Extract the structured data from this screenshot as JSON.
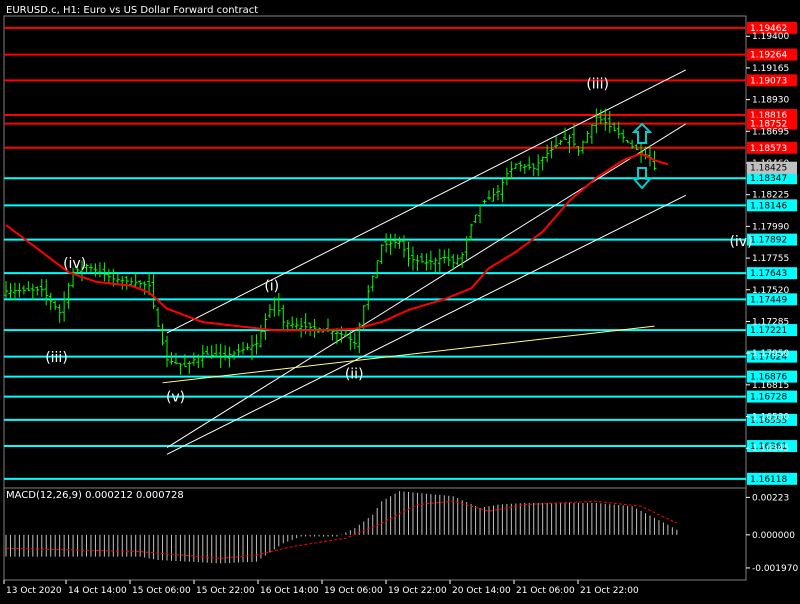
{
  "header": {
    "title": "EURUSD.c, H1:  Euro vs US Dollar Forward contract",
    "macd_label": "MACD(12,26,9) 0.000212 0.000728"
  },
  "colors": {
    "background": "#000000",
    "candle": "#00ff00",
    "ma": "#ff0000",
    "resistance": "#ff0000",
    "support": "#00ffff",
    "channel": "#ffffff",
    "trendline": "#ffff88",
    "macd_hist": "#c0c0c0",
    "macd_signal": "#ff0000",
    "arrow": "#00ced1"
  },
  "icons": {
    "up_arrow": "up-arrow-icon",
    "down_arrow": "down-arrow-icon"
  },
  "chart_data": {
    "type": "candlestick",
    "symbol": "EURUSD.c",
    "timeframe": "H1",
    "ylim": [
      1.1605,
      1.1955
    ],
    "price_ticks": [
      "1.19400",
      "1.19165",
      "1.18930",
      "1.18695",
      "1.18460",
      "1.18225",
      "1.17990",
      "1.17755",
      "1.17520",
      "1.17285",
      "1.17050",
      "1.16815",
      "1.16580",
      "1.16345"
    ],
    "resistance_levels": [
      "1.19462",
      "1.19264",
      "1.19073",
      "1.18816",
      "1.18752",
      "1.18573"
    ],
    "support_levels": [
      "1.18347",
      "1.18146",
      "1.17892",
      "1.17643",
      "1.17449",
      "1.17221",
      "1.17024",
      "1.16876",
      "1.16728",
      "1.16555",
      "1.16361",
      "1.16118"
    ],
    "current_price": "1.18425",
    "x_labels": [
      "13 Oct 2020",
      "14 Oct 14:00",
      "15 Oct 06:00",
      "15 Oct 22:00",
      "16 Oct 14:00",
      "19 Oct 06:00",
      "19 Oct 22:00",
      "20 Oct 14:00",
      "21 Oct 06:00",
      "21 Oct 22:00"
    ],
    "bars": 155,
    "close_path": [
      [
        0,
        1.1751
      ],
      [
        8,
        1.1752
      ],
      [
        12,
        1.1735
      ],
      [
        15,
        1.1765
      ],
      [
        18,
        1.177
      ],
      [
        24,
        1.176
      ],
      [
        28,
        1.1758
      ],
      [
        32,
        1.1755
      ],
      [
        34,
        1.1725
      ],
      [
        36,
        1.17
      ],
      [
        40,
        1.1695
      ],
      [
        44,
        1.1705
      ],
      [
        48,
        1.1702
      ],
      [
        52,
        1.1706
      ],
      [
        56,
        1.1712
      ],
      [
        58,
        1.173
      ],
      [
        60,
        1.1745
      ],
      [
        62,
        1.1728
      ],
      [
        66,
        1.1725
      ],
      [
        72,
        1.1722
      ],
      [
        76,
        1.1718
      ],
      [
        78,
        1.1712
      ],
      [
        80,
        1.174
      ],
      [
        82,
        1.1762
      ],
      [
        84,
        1.1785
      ],
      [
        88,
        1.1788
      ],
      [
        90,
        1.1775
      ],
      [
        94,
        1.1772
      ],
      [
        98,
        1.1776
      ],
      [
        100,
        1.1772
      ],
      [
        102,
        1.1778
      ],
      [
        104,
        1.18
      ],
      [
        106,
        1.1815
      ],
      [
        110,
        1.1825
      ],
      [
        112,
        1.1838
      ],
      [
        114,
        1.1845
      ],
      [
        118,
        1.1842
      ],
      [
        120,
        1.185
      ],
      [
        124,
        1.1862
      ],
      [
        126,
        1.1865
      ],
      [
        128,
        1.1855
      ],
      [
        130,
        1.1868
      ],
      [
        132,
        1.188
      ],
      [
        134,
        1.1876
      ],
      [
        136,
        1.187
      ],
      [
        138,
        1.1865
      ],
      [
        140,
        1.1858
      ],
      [
        142,
        1.1854
      ],
      [
        144,
        1.185
      ],
      [
        145,
        1.1842
      ]
    ],
    "ma_path": [
      [
        0,
        1.18
      ],
      [
        8,
        1.178
      ],
      [
        14,
        1.1765
      ],
      [
        20,
        1.1758
      ],
      [
        28,
        1.1755
      ],
      [
        32,
        1.175
      ],
      [
        36,
        1.1738
      ],
      [
        44,
        1.1728
      ],
      [
        52,
        1.1725
      ],
      [
        60,
        1.1722
      ],
      [
        70,
        1.1722
      ],
      [
        78,
        1.1723
      ],
      [
        84,
        1.1728
      ],
      [
        90,
        1.1737
      ],
      [
        98,
        1.1745
      ],
      [
        104,
        1.1753
      ],
      [
        108,
        1.1768
      ],
      [
        114,
        1.178
      ],
      [
        120,
        1.1795
      ],
      [
        126,
        1.1818
      ],
      [
        132,
        1.1835
      ],
      [
        138,
        1.1848
      ],
      [
        142,
        1.1853
      ],
      [
        145,
        1.1848
      ],
      [
        148,
        1.1845
      ]
    ],
    "channel_lines": [
      [
        [
          36,
          1.172
        ],
        [
          152,
          1.1915
        ]
      ],
      [
        [
          36,
          1.1635
        ],
        [
          152,
          1.1875
        ]
      ],
      [
        [
          36,
          1.163
        ],
        [
          152,
          1.1822
        ]
      ]
    ],
    "trendline": [
      [
        35,
        1.1683
      ],
      [
        145,
        1.1725
      ]
    ],
    "wave_labels": [
      {
        "text": "(iv)",
        "bar": 15,
        "price": 1.1772
      },
      {
        "text": "(iii)",
        "bar": 11,
        "price": 1.1702
      },
      {
        "text": "(v)",
        "bar": 38,
        "price": 1.1673
      },
      {
        "text": "(i)",
        "bar": 60,
        "price": 1.1755
      },
      {
        "text": "(ii)",
        "bar": 78,
        "price": 1.169
      },
      {
        "text": "(iii)",
        "bar": 132,
        "price": 1.1905
      },
      {
        "text": "(iv)",
        "bar": 164,
        "price": 1.1788
      }
    ],
    "macd": {
      "ylim": [
        -0.00245,
        0.00255
      ],
      "ticks": [
        "0.00223",
        "0.000000",
        "-0.001970"
      ],
      "hist_path": [
        [
          0,
          -0.0013
        ],
        [
          30,
          -0.0013
        ],
        [
          34,
          -0.0015
        ],
        [
          48,
          -0.0017
        ],
        [
          56,
          -0.0016
        ],
        [
          62,
          -0.0005
        ],
        [
          66,
          -0.0001
        ],
        [
          74,
          -0.0001
        ],
        [
          78,
          0.0004
        ],
        [
          82,
          0.0012
        ],
        [
          84,
          0.002
        ],
        [
          88,
          0.0026
        ],
        [
          100,
          0.0023
        ],
        [
          106,
          0.0016
        ],
        [
          110,
          0.0018
        ],
        [
          116,
          0.0019
        ],
        [
          132,
          0.0019
        ],
        [
          140,
          0.0017
        ],
        [
          148,
          0.0006
        ],
        [
          150,
          0.0003
        ]
      ],
      "signal_path": [
        [
          0,
          -0.0008
        ],
        [
          30,
          -0.001
        ],
        [
          48,
          -0.0014
        ],
        [
          56,
          -0.0012
        ],
        [
          64,
          -0.0007
        ],
        [
          76,
          -0.0002
        ],
        [
          84,
          0.0007
        ],
        [
          92,
          0.0018
        ],
        [
          100,
          0.002
        ],
        [
          108,
          0.0014
        ],
        [
          116,
          0.0018
        ],
        [
          132,
          0.002
        ],
        [
          142,
          0.0017
        ],
        [
          150,
          0.0007
        ]
      ]
    }
  }
}
